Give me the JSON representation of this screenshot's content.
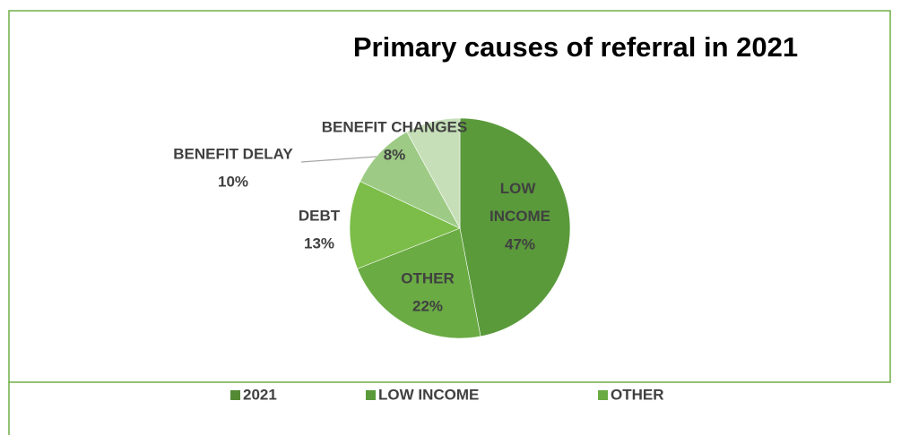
{
  "chart_data": {
    "type": "pie",
    "title": "Primary causes of referral in 2021",
    "categories": [
      "LOW INCOME",
      "OTHER",
      "DEBT",
      "BENEFIT DELAY",
      "BENEFIT CHANGES"
    ],
    "values": [
      47,
      22,
      13,
      10,
      8
    ],
    "value_labels": [
      "47%",
      "22%",
      "13%",
      "10%",
      "8%"
    ],
    "colors": [
      "#5a9a3b",
      "#6aab44",
      "#7bbd48",
      "#9dcb85",
      "#c6dfb8"
    ],
    "legend": [
      {
        "label": "2021",
        "color": "#548a34"
      },
      {
        "label": "LOW INCOME",
        "color": "#5a9a3b"
      },
      {
        "label": "OTHER",
        "color": "#6aab44"
      }
    ]
  }
}
